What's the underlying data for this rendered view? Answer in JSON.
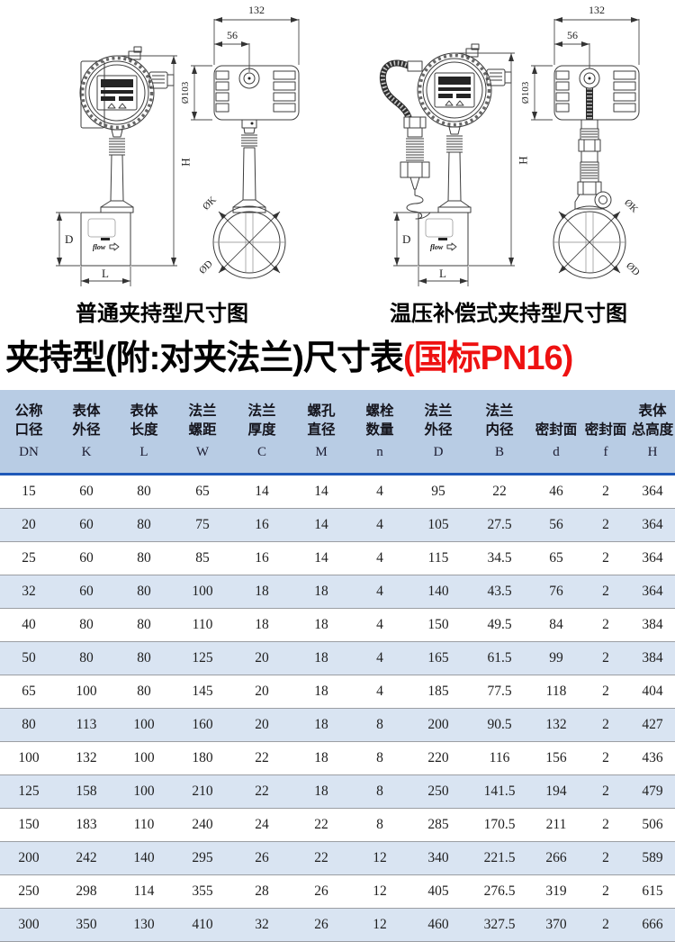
{
  "diagrams": {
    "left_caption": "普通夹持型尺寸图",
    "right_caption": "温压补偿式夹持型尺寸图",
    "dims": {
      "head_width": "132",
      "gland_offset": "56",
      "head_diameter": "Ø103",
      "total_height": "H",
      "body_height": "D",
      "body_length": "L",
      "flange_k": "ØK",
      "flange_d": "ØD",
      "flow_label": "flow"
    }
  },
  "title": {
    "main": "夹持型(附:对夹法兰)尺寸表",
    "spec": "(国标PN16)"
  },
  "colors": {
    "title_accent_red": "#ee1111",
    "table_header_bg": "#b8cce4",
    "table_alt_row_bg": "#d9e4f2",
    "table_header_rule": "#1e58b8"
  },
  "table": {
    "headers": [
      {
        "line1": "公称",
        "line2": "口径",
        "sym": "DN"
      },
      {
        "line1": "表体",
        "line2": "外径",
        "sym": "K"
      },
      {
        "line1": "表体",
        "line2": "长度",
        "sym": "L"
      },
      {
        "line1": "法兰",
        "line2": "螺距",
        "sym": "W"
      },
      {
        "line1": "法兰",
        "line2": "厚度",
        "sym": "C"
      },
      {
        "line1": "螺孔",
        "line2": "直径",
        "sym": "M"
      },
      {
        "line1": "螺栓",
        "line2": "数量",
        "sym": "n"
      },
      {
        "line1": "法兰",
        "line2": "外径",
        "sym": "D"
      },
      {
        "line1": "法兰",
        "line2": "内径",
        "sym": "B"
      },
      {
        "line1": "",
        "line2": "密封面",
        "sym": "d"
      },
      {
        "line1": "",
        "line2": "密封面",
        "sym": "f"
      },
      {
        "line1": "表体",
        "line2": "总高度",
        "sym": "H"
      }
    ],
    "rows": [
      [
        "15",
        "60",
        "80",
        "65",
        "14",
        "14",
        "4",
        "95",
        "22",
        "46",
        "2",
        "364"
      ],
      [
        "20",
        "60",
        "80",
        "75",
        "16",
        "14",
        "4",
        "105",
        "27.5",
        "56",
        "2",
        "364"
      ],
      [
        "25",
        "60",
        "80",
        "85",
        "16",
        "14",
        "4",
        "115",
        "34.5",
        "65",
        "2",
        "364"
      ],
      [
        "32",
        "60",
        "80",
        "100",
        "18",
        "18",
        "4",
        "140",
        "43.5",
        "76",
        "2",
        "364"
      ],
      [
        "40",
        "80",
        "80",
        "110",
        "18",
        "18",
        "4",
        "150",
        "49.5",
        "84",
        "2",
        "384"
      ],
      [
        "50",
        "80",
        "80",
        "125",
        "20",
        "18",
        "4",
        "165",
        "61.5",
        "99",
        "2",
        "384"
      ],
      [
        "65",
        "100",
        "80",
        "145",
        "20",
        "18",
        "4",
        "185",
        "77.5",
        "118",
        "2",
        "404"
      ],
      [
        "80",
        "113",
        "100",
        "160",
        "20",
        "18",
        "8",
        "200",
        "90.5",
        "132",
        "2",
        "427"
      ],
      [
        "100",
        "132",
        "100",
        "180",
        "22",
        "18",
        "8",
        "220",
        "116",
        "156",
        "2",
        "436"
      ],
      [
        "125",
        "158",
        "100",
        "210",
        "22",
        "18",
        "8",
        "250",
        "141.5",
        "194",
        "2",
        "479"
      ],
      [
        "150",
        "183",
        "110",
        "240",
        "24",
        "22",
        "8",
        "285",
        "170.5",
        "211",
        "2",
        "506"
      ],
      [
        "200",
        "242",
        "140",
        "295",
        "26",
        "22",
        "12",
        "340",
        "221.5",
        "266",
        "2",
        "589"
      ],
      [
        "250",
        "298",
        "114",
        "355",
        "28",
        "26",
        "12",
        "405",
        "276.5",
        "319",
        "2",
        "615"
      ],
      [
        "300",
        "350",
        "130",
        "410",
        "32",
        "26",
        "12",
        "460",
        "327.5",
        "370",
        "2",
        "666"
      ]
    ]
  }
}
